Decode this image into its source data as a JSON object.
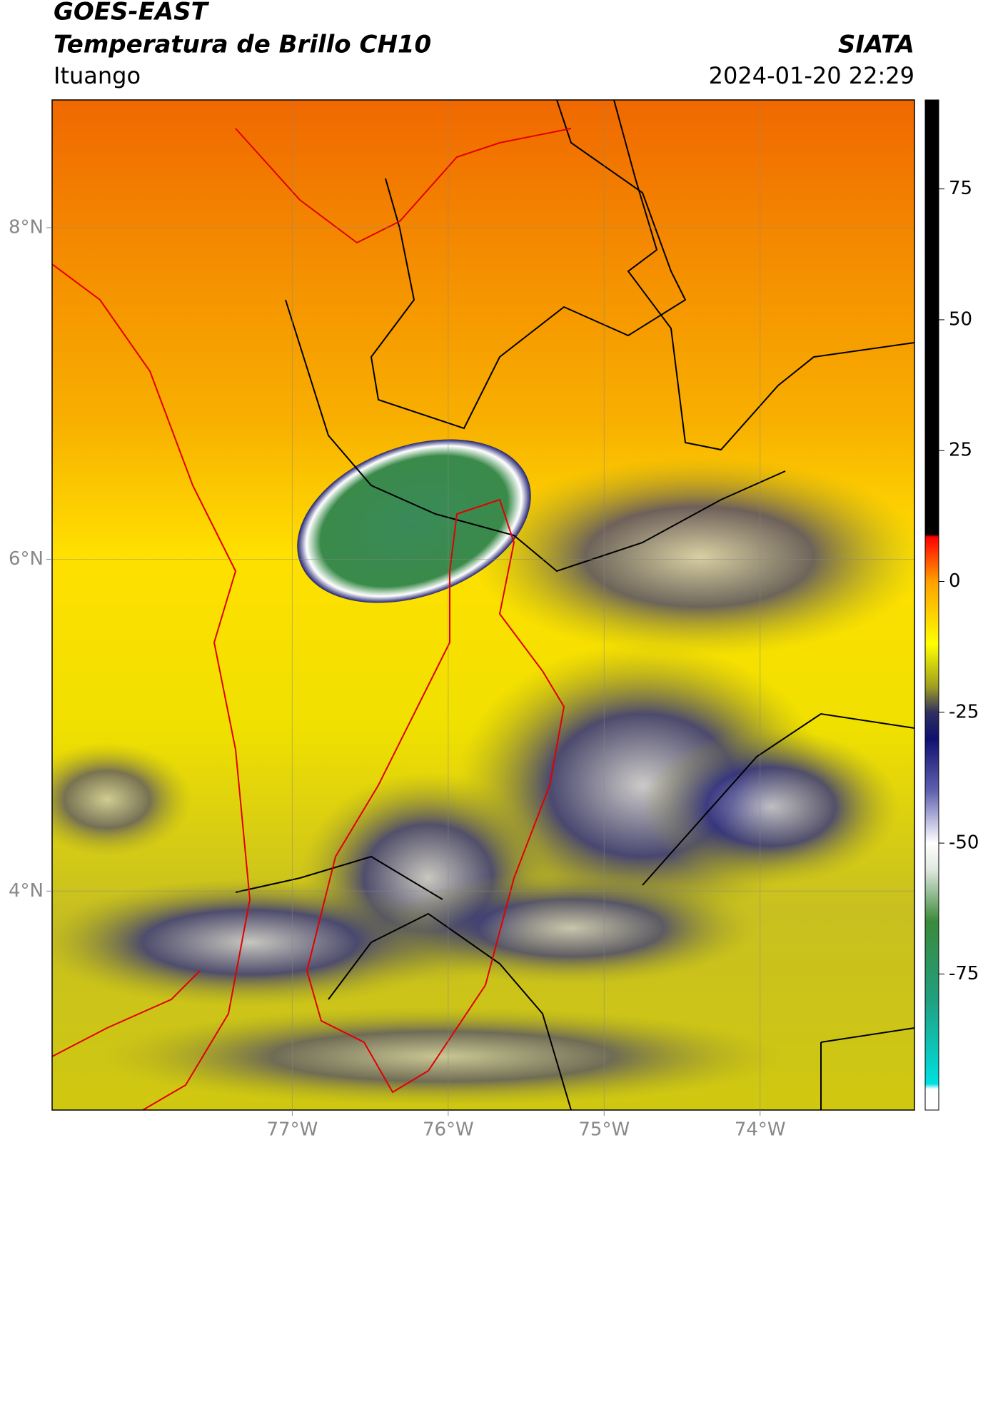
{
  "header": {
    "title": "GOES-EAST",
    "subtitle": "Temperatura de Brillo CH10",
    "brand": "SIATA",
    "location": "Ituango",
    "datetime": "2024-01-20 22:29"
  },
  "map": {
    "xlim": [
      -78.54,
      -73.01
    ],
    "ylim": [
      2.68,
      8.77
    ],
    "xticks": [
      {
        "value": -77,
        "label": "77°W"
      },
      {
        "value": -76,
        "label": "76°W"
      },
      {
        "value": -75,
        "label": "75°W"
      },
      {
        "value": -74,
        "label": "74°W"
      }
    ],
    "yticks": [
      {
        "value": 8,
        "label": "8°N"
      },
      {
        "value": 6,
        "label": "6°N"
      },
      {
        "value": 4,
        "label": "4°N"
      }
    ],
    "grid": true
  },
  "colorbar": {
    "clim": [
      -101,
      92
    ],
    "ticks": [
      75,
      50,
      25,
      0,
      -25,
      -50,
      -75
    ],
    "colormap": [
      {
        "value": 92,
        "color": "#000000"
      },
      {
        "value": 9,
        "color": "#000000"
      },
      {
        "value": 8.5,
        "color": "#ff0000"
      },
      {
        "value": 0,
        "color": "#ffa000"
      },
      {
        "value": -12,
        "color": "#ffff00"
      },
      {
        "value": -20,
        "color": "#a0a020"
      },
      {
        "value": -25,
        "color": "#303060"
      },
      {
        "value": -30,
        "color": "#101070"
      },
      {
        "value": -40,
        "color": "#6060b0"
      },
      {
        "value": -50,
        "color": "#ffffff"
      },
      {
        "value": -55,
        "color": "#e0e8e0"
      },
      {
        "value": -65,
        "color": "#3a8a3a"
      },
      {
        "value": -80,
        "color": "#20a080"
      },
      {
        "value": -96,
        "color": "#00e0e0"
      },
      {
        "value": -97,
        "color": "#ffffff"
      },
      {
        "value": -101,
        "color": "#ffffff"
      }
    ]
  }
}
